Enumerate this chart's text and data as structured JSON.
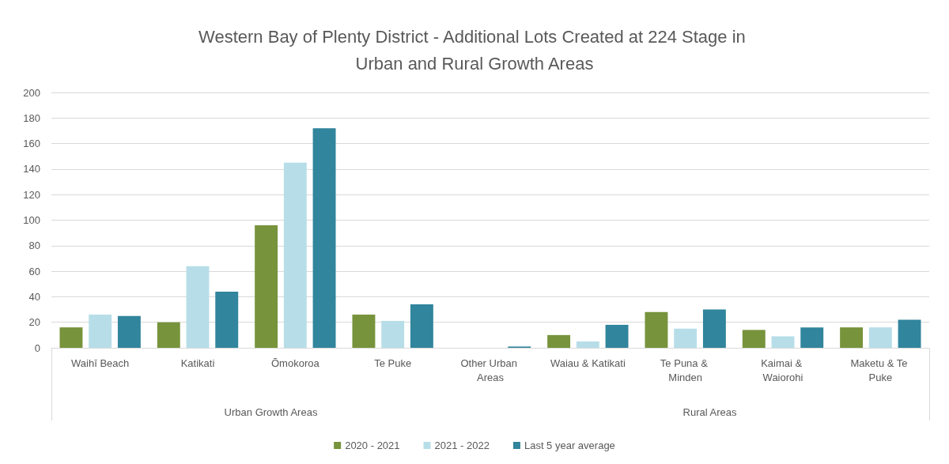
{
  "chart_data": {
    "type": "bar",
    "title": "Western Bay of Plenty District - Additional Lots Created at 224 Stage in Urban and Rural Growth Areas",
    "categories": [
      "Waihī Beach",
      "Katikati",
      "Ōmokoroa",
      "Te Puke",
      "Other Urban Areas",
      "Waiau & Katikati",
      "Te Puna & Minden",
      "Kaimai & Waiorohi",
      "Maketu & Te Puke"
    ],
    "series": [
      {
        "name": "2020 - 2021",
        "color": "#77933c",
        "values": [
          16,
          20,
          96,
          26,
          0,
          10,
          28,
          14,
          16
        ]
      },
      {
        "name": "2021 - 2022",
        "color": "#b7dee8",
        "values": [
          26,
          64,
          145,
          21,
          0,
          5,
          15,
          9,
          16
        ]
      },
      {
        "name": "Last 5 year average",
        "color": "#31859c",
        "values": [
          25,
          44,
          172,
          34,
          1,
          18,
          30,
          16,
          22
        ]
      }
    ],
    "ylim": [
      0,
      200
    ],
    "yticks": [
      0,
      20,
      40,
      60,
      80,
      100,
      120,
      140,
      160,
      180,
      200
    ],
    "grid": "y",
    "legend": "bottom",
    "annotations": [
      "Urban Growth Areas",
      "Rural Areas"
    ]
  }
}
